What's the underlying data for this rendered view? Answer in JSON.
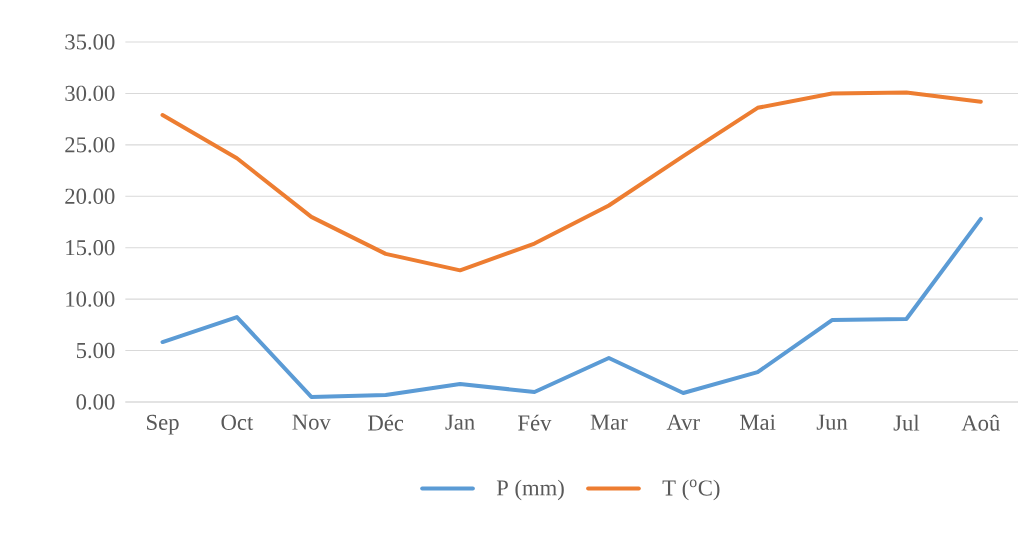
{
  "chart_data": {
    "type": "line",
    "categories": [
      "Sep",
      "Oct",
      "Nov",
      "Déc",
      "Jan",
      "Fév",
      "Mar",
      "Avr",
      "Mai",
      "Jun",
      "Jul",
      "Aoû"
    ],
    "series": [
      {
        "name": "P (mm)",
        "color": "#5b9bd5",
        "values": [
          5.83,
          8.26,
          0.49,
          0.68,
          1.75,
          0.97,
          4.28,
          0.87,
          2.9,
          7.97,
          8.07,
          17.8
        ]
      },
      {
        "name": "T ($^{o}$C)",
        "color": "#ed7d31",
        "values": [
          27.9,
          23.7,
          18.0,
          14.4,
          12.8,
          15.4,
          19.1,
          23.9,
          28.6,
          30.0,
          30.1,
          29.2
        ]
      }
    ],
    "ylim": [
      0,
      35
    ],
    "yticks": [
      {
        "value": 0,
        "label": "0.00"
      },
      {
        "value": 5,
        "label": "5.00"
      },
      {
        "value": 10,
        "label": "10.00"
      },
      {
        "value": 15,
        "label": "15.00"
      },
      {
        "value": 20,
        "label": "20.00"
      },
      {
        "value": 25,
        "label": "25.00"
      },
      {
        "value": 30,
        "label": "30.00"
      },
      {
        "value": 35,
        "label": "35.00"
      }
    ],
    "grid": "y",
    "legend": "bottom"
  }
}
